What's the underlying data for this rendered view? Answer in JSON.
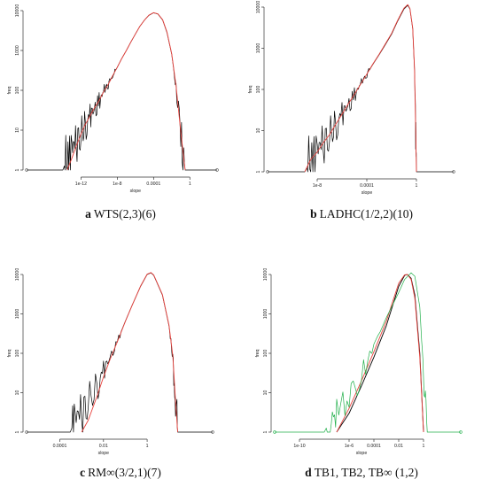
{
  "chart_data": [
    {
      "type": "line",
      "caption_letter": "a",
      "caption_text": "WTS(2,3)(6)",
      "xlabel": "slope",
      "ylabel": "freq",
      "x_scale": "log",
      "y_scale": "log",
      "xlim": [
        1e-18,
        1000
      ],
      "ylim": [
        1,
        10000
      ],
      "x_ticks": [
        {
          "v": 1e-12,
          "label": "1e-12"
        },
        {
          "v": 1e-08,
          "label": "1e-8"
        },
        {
          "v": 0.0001,
          "label": "0.0001"
        },
        {
          "v": 1,
          "label": "1"
        }
      ],
      "y_ticks": [
        {
          "v": 1,
          "label": "1"
        },
        {
          "v": 10,
          "label": "10"
        },
        {
          "v": 100,
          "label": "100"
        },
        {
          "v": 1000,
          "label": "1000"
        },
        {
          "v": 10000,
          "label": "10000"
        }
      ],
      "series": [
        {
          "color": "#000000",
          "style": "empirical",
          "points": [
            [
              1e-18,
              1
            ],
            [
              1e-16,
              1
            ],
            [
              1e-15,
              1
            ],
            [
              1e-14,
              1
            ],
            [
              3e-14,
              2
            ],
            [
              1e-13,
              3
            ],
            [
              3e-13,
              5
            ],
            [
              1e-12,
              8
            ],
            [
              3e-12,
              14
            ],
            [
              1e-11,
              22
            ],
            [
              3e-11,
              35
            ],
            [
              1e-10,
              55
            ],
            [
              3e-10,
              90
            ],
            [
              1e-09,
              140
            ],
            [
              3e-09,
              230
            ],
            [
              1e-08,
              380
            ],
            [
              3e-08,
              620
            ],
            [
              1e-07,
              1000
            ],
            [
              3e-07,
              1600
            ],
            [
              1e-06,
              2600
            ],
            [
              3e-06,
              4000
            ],
            [
              1e-05,
              5800
            ],
            [
              3e-05,
              7600
            ],
            [
              0.0001,
              8800
            ],
            [
              0.0003,
              8200
            ],
            [
              0.001,
              5800
            ],
            [
              0.003,
              2800
            ],
            [
              0.01,
              800
            ],
            [
              0.03,
              120
            ],
            [
              0.1,
              8
            ],
            [
              0.3,
              1
            ],
            [
              1,
              1
            ],
            [
              10,
              1
            ],
            [
              100,
              1
            ],
            [
              1000,
              1
            ]
          ]
        },
        {
          "color": "#e8413c",
          "style": "fit",
          "points": [
            [
              3e-14,
              1
            ],
            [
              1e-13,
              2
            ],
            [
              3e-13,
              4
            ],
            [
              1e-12,
              8
            ],
            [
              3e-12,
              14
            ],
            [
              1e-11,
              23
            ],
            [
              3e-11,
              36
            ],
            [
              1e-10,
              56
            ],
            [
              3e-10,
              90
            ],
            [
              1e-09,
              140
            ],
            [
              3e-09,
              230
            ],
            [
              1e-08,
              380
            ],
            [
              3e-08,
              620
            ],
            [
              1e-07,
              1000
            ],
            [
              3e-07,
              1600
            ],
            [
              1e-06,
              2600
            ],
            [
              3e-06,
              4000
            ],
            [
              1e-05,
              5800
            ],
            [
              3e-05,
              7700
            ],
            [
              0.0001,
              8900
            ],
            [
              0.0003,
              8300
            ],
            [
              0.001,
              5900
            ],
            [
              0.003,
              2900
            ],
            [
              0.01,
              820
            ],
            [
              0.03,
              130
            ],
            [
              0.1,
              9
            ],
            [
              0.3,
              1
            ]
          ]
        }
      ]
    },
    {
      "type": "line",
      "caption_letter": "b",
      "caption_text": "LADHC(1/2,2)(10)",
      "xlabel": "slope",
      "ylabel": "freq",
      "x_scale": "log",
      "y_scale": "log",
      "xlim": [
        1e-12,
        1000
      ],
      "ylim": [
        1,
        10000
      ],
      "x_ticks": [
        {
          "v": 1e-08,
          "label": "1e-8"
        },
        {
          "v": 0.0001,
          "label": "0.0001"
        },
        {
          "v": 1,
          "label": "1"
        }
      ],
      "y_ticks": [
        {
          "v": 1,
          "label": "1"
        },
        {
          "v": 10,
          "label": "10"
        },
        {
          "v": 100,
          "label": "100"
        },
        {
          "v": 1000,
          "label": "1000"
        },
        {
          "v": 10000,
          "label": "10000"
        }
      ],
      "series": [
        {
          "color": "#000000",
          "style": "empirical",
          "points": [
            [
              1e-12,
              1
            ],
            [
              1e-11,
              1
            ],
            [
              1e-10,
              1
            ],
            [
              1e-09,
              1
            ],
            [
              3e-09,
              2
            ],
            [
              1e-08,
              3
            ],
            [
              3e-08,
              5
            ],
            [
              1e-07,
              8
            ],
            [
              3e-07,
              14
            ],
            [
              1e-06,
              24
            ],
            [
              3e-06,
              42
            ],
            [
              1e-05,
              75
            ],
            [
              3e-05,
              130
            ],
            [
              0.0001,
              230
            ],
            [
              0.0003,
              400
            ],
            [
              0.001,
              700
            ],
            [
              0.003,
              1200
            ],
            [
              0.01,
              2200
            ],
            [
              0.03,
              4500
            ],
            [
              0.1,
              9000
            ],
            [
              0.2,
              11000
            ],
            [
              0.3,
              9000
            ],
            [
              0.5,
              3000
            ],
            [
              0.7,
              300
            ],
            [
              0.9,
              5
            ],
            [
              1,
              1
            ],
            [
              10,
              1
            ],
            [
              100,
              1
            ],
            [
              1000,
              1
            ]
          ]
        },
        {
          "color": "#e8413c",
          "style": "fit",
          "points": [
            [
              1e-09,
              1
            ],
            [
              3e-09,
              2
            ],
            [
              1e-08,
              3
            ],
            [
              3e-08,
              5
            ],
            [
              1e-07,
              8
            ],
            [
              3e-07,
              14
            ],
            [
              1e-06,
              25
            ],
            [
              3e-06,
              43
            ],
            [
              1e-05,
              76
            ],
            [
              3e-05,
              130
            ],
            [
              0.0001,
              235
            ],
            [
              0.0003,
              410
            ],
            [
              0.001,
              720
            ],
            [
              0.003,
              1250
            ],
            [
              0.01,
              2300
            ],
            [
              0.03,
              4700
            ],
            [
              0.1,
              9500
            ],
            [
              0.2,
              11500
            ],
            [
              0.3,
              9200
            ],
            [
              0.5,
              3100
            ],
            [
              0.7,
              320
            ],
            [
              0.9,
              6
            ],
            [
              1,
              1
            ]
          ]
        }
      ]
    },
    {
      "type": "line",
      "caption_letter": "c",
      "caption_text": "RM∞(3/2,1)(7)",
      "xlabel": "slope",
      "ylabel": "freq",
      "x_scale": "log",
      "y_scale": "log",
      "xlim": [
        3e-06,
        1000
      ],
      "ylim": [
        1,
        10000
      ],
      "x_ticks": [
        {
          "v": 0.0001,
          "label": "0.0001"
        },
        {
          "v": 0.01,
          "label": "0.01"
        },
        {
          "v": 1,
          "label": "1"
        }
      ],
      "y_ticks": [
        {
          "v": 1,
          "label": "1"
        },
        {
          "v": 10,
          "label": "10"
        },
        {
          "v": 100,
          "label": "100"
        },
        {
          "v": 1000,
          "label": "1000"
        },
        {
          "v": 10000,
          "label": "10000"
        }
      ],
      "series": [
        {
          "color": "#000000",
          "style": "empirical",
          "points": [
            [
              3e-06,
              1
            ],
            [
              1e-05,
              1
            ],
            [
              3e-05,
              1
            ],
            [
              0.0001,
              1
            ],
            [
              0.0003,
              1
            ],
            [
              0.0005,
              2
            ],
            [
              0.001,
              3
            ],
            [
              0.002,
              6
            ],
            [
              0.005,
              15
            ],
            [
              0.01,
              35
            ],
            [
              0.02,
              80
            ],
            [
              0.05,
              250
            ],
            [
              0.1,
              650
            ],
            [
              0.2,
              1600
            ],
            [
              0.5,
              5000
            ],
            [
              1,
              10000
            ],
            [
              1.5,
              11000
            ],
            [
              2,
              9500
            ],
            [
              5,
              3000
            ],
            [
              10,
              500
            ],
            [
              15,
              80
            ],
            [
              20,
              5
            ],
            [
              25,
              1
            ],
            [
              30,
              1
            ],
            [
              1000,
              1
            ]
          ]
        },
        {
          "color": "#e8413c",
          "style": "fit",
          "points": [
            [
              0.001,
              1
            ],
            [
              0.002,
              2
            ],
            [
              0.005,
              8
            ],
            [
              0.01,
              25
            ],
            [
              0.02,
              70
            ],
            [
              0.05,
              240
            ],
            [
              0.1,
              640
            ],
            [
              0.2,
              1600
            ],
            [
              0.5,
              5100
            ],
            [
              1,
              10200
            ],
            [
              1.5,
              11200
            ],
            [
              2,
              9700
            ],
            [
              5,
              3100
            ],
            [
              10,
              520
            ],
            [
              15,
              85
            ],
            [
              20,
              6
            ],
            [
              25,
              1
            ]
          ]
        }
      ]
    },
    {
      "type": "line",
      "caption_letter": "d",
      "caption_text": "TB1, TB2, TB∞ (1,2)",
      "xlabel": "slope",
      "ylabel": "freq",
      "x_scale": "log",
      "y_scale": "log",
      "xlim": [
        1e-12,
        1000
      ],
      "ylim": [
        1,
        10000
      ],
      "x_ticks": [
        {
          "v": 1e-10,
          "label": "1e-10"
        },
        {
          "v": 1e-06,
          "label": "1e-6"
        },
        {
          "v": 0.0001,
          "label": "0.0001"
        },
        {
          "v": 0.01,
          "label": "0.01"
        },
        {
          "v": 1,
          "label": "1"
        }
      ],
      "y_ticks": [
        {
          "v": 1,
          "label": "1"
        },
        {
          "v": 10,
          "label": "10"
        },
        {
          "v": 100,
          "label": "100"
        },
        {
          "v": 1000,
          "label": "1000"
        },
        {
          "v": 10000,
          "label": "10000"
        }
      ],
      "series": [
        {
          "color": "#000000",
          "style": "fit",
          "points": [
            [
              1e-07,
              1
            ],
            [
              1e-06,
              3
            ],
            [
              1e-05,
              15
            ],
            [
              0.0001,
              80
            ],
            [
              0.001,
              500
            ],
            [
              0.003,
              1500
            ],
            [
              0.01,
              5000
            ],
            [
              0.03,
              9500
            ],
            [
              0.05,
              10000
            ],
            [
              0.1,
              8000
            ],
            [
              0.2,
              3000
            ],
            [
              0.5,
              100
            ],
            [
              1,
              1
            ]
          ]
        },
        {
          "color": "#e8413c",
          "style": "fit",
          "points": [
            [
              1e-07,
              1
            ],
            [
              1e-06,
              4
            ],
            [
              1e-05,
              20
            ],
            [
              0.0001,
              110
            ],
            [
              0.001,
              650
            ],
            [
              0.003,
              1900
            ],
            [
              0.01,
              6000
            ],
            [
              0.03,
              9800
            ],
            [
              0.05,
              10000
            ],
            [
              0.1,
              7500
            ],
            [
              0.2,
              2500
            ],
            [
              0.5,
              80
            ],
            [
              1,
              1
            ]
          ]
        },
        {
          "color": "#22b04b",
          "style": "empirical",
          "points": [
            [
              1e-12,
              1
            ],
            [
              1e-11,
              1
            ],
            [
              1e-10,
              1
            ],
            [
              1e-09,
              1
            ],
            [
              1e-08,
              1
            ],
            [
              3e-08,
              2
            ],
            [
              1e-07,
              3
            ],
            [
              1e-06,
              8
            ],
            [
              1e-05,
              30
            ],
            [
              0.0001,
              150
            ],
            [
              0.001,
              800
            ],
            [
              0.01,
              3500
            ],
            [
              0.03,
              7500
            ],
            [
              0.1,
              11000
            ],
            [
              0.2,
              9000
            ],
            [
              0.5,
              1500
            ],
            [
              1,
              30
            ],
            [
              2,
              1
            ],
            [
              10,
              1
            ],
            [
              100,
              1
            ],
            [
              1000,
              1
            ]
          ]
        }
      ]
    }
  ]
}
